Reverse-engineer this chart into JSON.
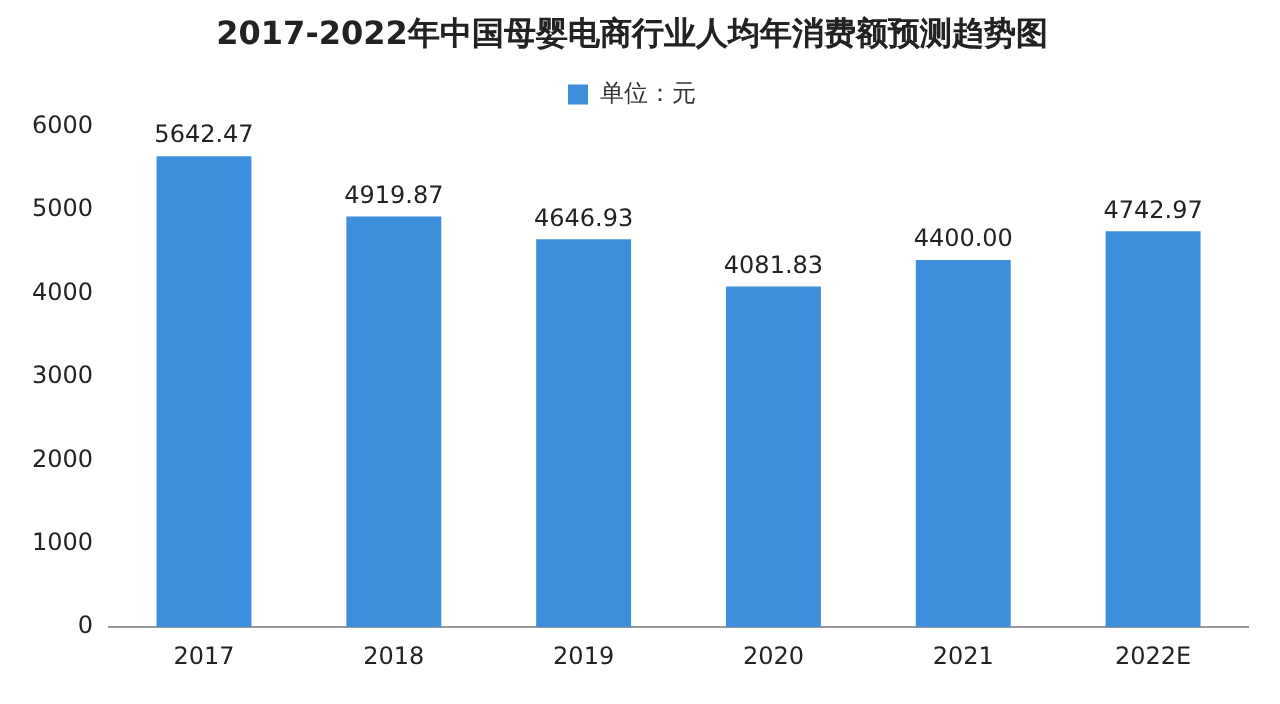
{
  "chart_data": {
    "type": "bar",
    "title": "2017-2022年中国母婴电商行业人均年消费额预测趋势图",
    "categories": [
      "2017",
      "2018",
      "2019",
      "2020",
      "2021",
      "2022E"
    ],
    "series": [
      {
        "name": "单位：元",
        "color": "#3d8fdb",
        "values": [
          5642.47,
          4919.87,
          4646.93,
          4081.83,
          4400.0,
          4742.97
        ]
      }
    ],
    "value_labels": [
      "5642.47",
      "4919.87",
      "4646.93",
      "4081.83",
      "4400.00",
      "4742.97"
    ],
    "ylim": [
      0,
      6000
    ],
    "yticks": [
      0,
      1000,
      2000,
      3000,
      4000,
      5000,
      6000
    ],
    "grid": false,
    "legend": "top"
  }
}
